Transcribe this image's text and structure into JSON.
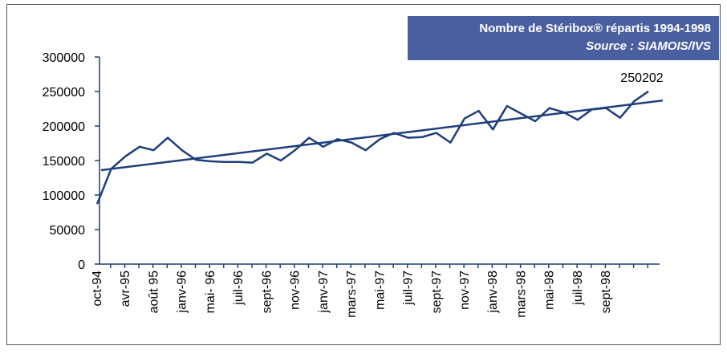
{
  "chart_data": {
    "type": "line",
    "title": "Nombre de Stéribox® répartis 1994-1998",
    "subtitle": "Source : SIAMOIS/IVS",
    "categories": [
      "oct-94",
      null,
      "avr-95",
      null,
      "août 95",
      null,
      "janv-96",
      null,
      "mai- 96",
      null,
      "juil-96",
      null,
      "sept-96",
      null,
      "nov-96",
      null,
      "janv-97",
      null,
      "mars-97",
      null,
      "mai-97",
      null,
      "juil-97",
      null,
      "sept-97",
      null,
      "nov-97",
      null,
      "janv-98",
      null,
      "mars-98",
      null,
      "mai-98",
      null,
      "juil-98",
      null,
      "sept-98",
      null,
      null,
      null
    ],
    "series": [
      {
        "name": "Stéribox",
        "color": "#1e3f7a",
        "values": [
          87000,
          138000,
          156000,
          170000,
          165000,
          183000,
          165000,
          151000,
          149000,
          148000,
          148000,
          147000,
          160000,
          150000,
          165000,
          183000,
          170000,
          181000,
          176000,
          165000,
          181000,
          190000,
          183000,
          184000,
          190000,
          176000,
          211000,
          222000,
          195000,
          229000,
          218000,
          207000,
          226000,
          220000,
          209000,
          224000,
          226000,
          212000,
          236000,
          250202
        ]
      }
    ],
    "trend": [
      136000,
      237000
    ],
    "ylim": [
      0,
      300000
    ],
    "yticks": [
      0,
      50000,
      100000,
      150000,
      200000,
      250000,
      300000
    ]
  }
}
